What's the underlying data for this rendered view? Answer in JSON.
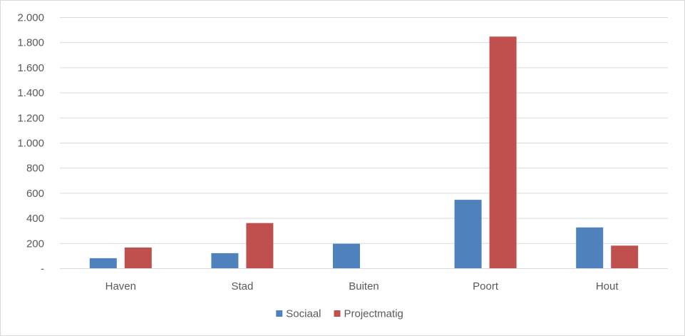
{
  "chart_data": {
    "type": "bar",
    "categories": [
      "Haven",
      "Stad",
      "Buiten",
      "Poort",
      "Hout"
    ],
    "series": [
      {
        "name": "Sociaal",
        "values": [
          80,
          120,
          195,
          545,
          325
        ],
        "color": "#4f81bd"
      },
      {
        "name": "Projectmatig",
        "values": [
          165,
          360,
          0,
          1845,
          180
        ],
        "color": "#c0504d"
      }
    ],
    "y_ticks": [
      {
        "value": 0,
        "label": "-"
      },
      {
        "value": 200,
        "label": "200"
      },
      {
        "value": 400,
        "label": "400"
      },
      {
        "value": 600,
        "label": "600"
      },
      {
        "value": 800,
        "label": "800"
      },
      {
        "value": 1000,
        "label": "1.000"
      },
      {
        "value": 1200,
        "label": "1.200"
      },
      {
        "value": 1400,
        "label": "1.400"
      },
      {
        "value": 1600,
        "label": "1.600"
      },
      {
        "value": 1800,
        "label": "1.800"
      },
      {
        "value": 2000,
        "label": "2.000"
      }
    ],
    "ylim": [
      0,
      2000
    ],
    "grid": true,
    "legend_position": "bottom-center",
    "title": "",
    "xlabel": "",
    "ylabel": ""
  }
}
